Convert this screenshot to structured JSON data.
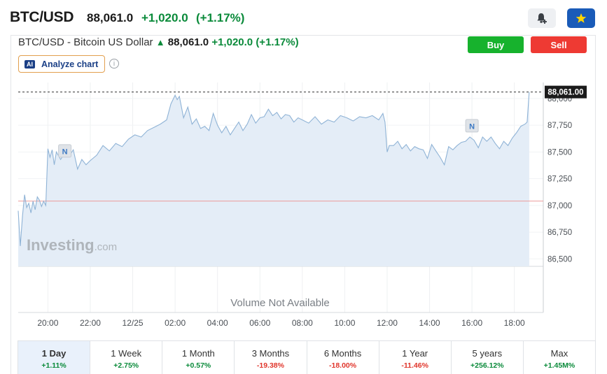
{
  "header": {
    "symbol": "BTC/USD",
    "price": "88,061.0",
    "change": "+1,020.0",
    "change_pct": "(+1.17%)"
  },
  "icons": {
    "alert": "bell-plus-icon",
    "watchlist": "star-icon"
  },
  "chart_header": {
    "title": "BTC/USD - Bitcoin US Dollar",
    "price": "88,061.0",
    "change": "+1,020.0",
    "change_pct": "(+1.17%)"
  },
  "buttons": {
    "buy": "Buy",
    "sell": "Sell",
    "analyze": "Analyze chart",
    "ai_badge": "AI",
    "info": "i"
  },
  "colors": {
    "up": "#0a8a3a",
    "down": "#e0352b",
    "accent": "#1a5bb8",
    "line": "#8fb3d6",
    "fill": "#e4edf7"
  },
  "chart_data": {
    "type": "area",
    "watermark": "Investing.com",
    "volume_note": "Volume Not Available",
    "current_label": "88,061.00",
    "previous_close": 87041,
    "y_ticks": [
      "86,500",
      "86,750",
      "87,000",
      "87,250",
      "87,500",
      "87,750",
      "88,000"
    ],
    "ylim": [
      86430,
      88150
    ],
    "x_ticks": [
      {
        "label": "20:00",
        "t": 0
      },
      {
        "label": "22:00",
        "t": 2
      },
      {
        "label": "12/25",
        "t": 4
      },
      {
        "label": "02:00",
        "t": 6
      },
      {
        "label": "04:00",
        "t": 8
      },
      {
        "label": "06:00",
        "t": 10
      },
      {
        "label": "08:00",
        "t": 12
      },
      {
        "label": "10:00",
        "t": 14
      },
      {
        "label": "12:00",
        "t": 16
      },
      {
        "label": "14:00",
        "t": 18
      },
      {
        "label": "16:00",
        "t": 20
      },
      {
        "label": "18:00",
        "t": 22
      }
    ],
    "xlim": [
      -1.4,
      23.1
    ],
    "news_markers": [
      {
        "label": "N",
        "t": 0.8,
        "value": 87510
      },
      {
        "label": "N",
        "t": 20.0,
        "value": 87745
      }
    ],
    "series": [
      {
        "x": [
          -1.4,
          -1.3,
          -1.2,
          -1.1,
          -1.0,
          -0.9,
          -0.8,
          -0.7,
          -0.6,
          -0.5,
          -0.4,
          -0.3,
          -0.2,
          -0.1,
          0.0,
          0.1,
          0.2,
          0.3,
          0.4,
          0.6,
          0.8,
          1.0,
          1.2,
          1.4,
          1.6,
          1.8,
          2.0,
          2.3,
          2.6,
          2.9,
          3.2,
          3.5,
          3.8,
          4.1,
          4.4,
          4.7,
          5.0,
          5.3,
          5.6,
          5.8,
          6.0,
          6.1,
          6.2,
          6.4,
          6.6,
          6.8,
          7.0,
          7.2,
          7.4,
          7.6,
          7.8,
          8.0,
          8.2,
          8.4,
          8.6,
          8.8,
          9.0,
          9.2,
          9.4,
          9.6,
          9.8,
          10.0,
          10.2,
          10.4,
          10.6,
          10.8,
          11.0,
          11.2,
          11.4,
          11.6,
          11.8,
          12.0,
          12.3,
          12.6,
          12.9,
          13.2,
          13.5,
          13.8,
          14.1,
          14.4,
          14.7,
          15.0,
          15.3,
          15.6,
          15.8,
          15.9,
          16.0,
          16.1,
          16.3,
          16.5,
          16.7,
          16.9,
          17.1,
          17.3,
          17.5,
          17.7,
          17.9,
          18.1,
          18.3,
          18.5,
          18.7,
          18.9,
          19.1,
          19.3,
          19.5,
          19.7,
          19.9,
          20.1,
          20.3,
          20.5,
          20.7,
          20.9,
          21.1,
          21.3,
          21.5,
          21.7,
          21.9,
          22.1,
          22.3,
          22.5,
          22.6,
          22.7
        ],
        "y": [
          86950,
          86620,
          86900,
          87100,
          86980,
          87020,
          86930,
          87040,
          86960,
          87080,
          87050,
          86990,
          87040,
          87000,
          87530,
          87450,
          87520,
          87380,
          87500,
          87430,
          87490,
          87460,
          87520,
          87340,
          87430,
          87380,
          87420,
          87470,
          87560,
          87510,
          87580,
          87550,
          87620,
          87660,
          87640,
          87700,
          87730,
          87760,
          87800,
          87950,
          88030,
          87990,
          88020,
          87820,
          87920,
          87760,
          87810,
          87720,
          87740,
          87700,
          87860,
          87750,
          87680,
          87740,
          87660,
          87720,
          87780,
          87700,
          87760,
          87850,
          87770,
          87820,
          87830,
          87900,
          87840,
          87870,
          87810,
          87850,
          87840,
          87780,
          87820,
          87800,
          87770,
          87830,
          87760,
          87800,
          87780,
          87840,
          87820,
          87790,
          87830,
          87820,
          87840,
          87800,
          87860,
          87780,
          87500,
          87560,
          87560,
          87600,
          87530,
          87570,
          87510,
          87550,
          87530,
          87520,
          87440,
          87570,
          87510,
          87450,
          87380,
          87550,
          87520,
          87560,
          87590,
          87600,
          87640,
          87610,
          87540,
          87640,
          87600,
          87640,
          87580,
          87530,
          87600,
          87560,
          87630,
          87680,
          87740,
          87760,
          87780,
          88061
        ]
      }
    ]
  },
  "timeframes": [
    {
      "label": "1 Day",
      "pct": "+1.11%",
      "dir": "up",
      "active": true
    },
    {
      "label": "1 Week",
      "pct": "+2.75%",
      "dir": "up",
      "active": false
    },
    {
      "label": "1 Month",
      "pct": "+0.57%",
      "dir": "up",
      "active": false
    },
    {
      "label": "3 Months",
      "pct": "-19.38%",
      "dir": "down",
      "active": false
    },
    {
      "label": "6 Months",
      "pct": "-18.00%",
      "dir": "down",
      "active": false
    },
    {
      "label": "1 Year",
      "pct": "-11.46%",
      "dir": "down",
      "active": false
    },
    {
      "label": "5 years",
      "pct": "+256.12%",
      "dir": "up",
      "active": false
    },
    {
      "label": "Max",
      "pct": "+1.45M%",
      "dir": "up",
      "active": false
    }
  ]
}
